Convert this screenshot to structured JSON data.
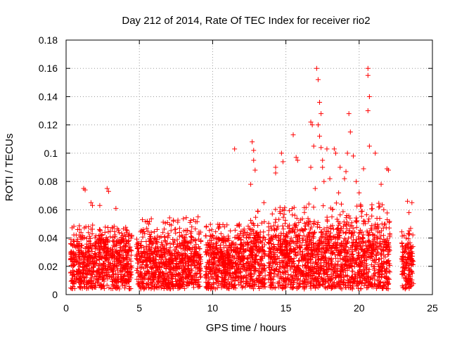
{
  "chart_data": {
    "type": "scatter",
    "title": "Day 212 of 2014, Rate Of TEC Index for receiver rio2",
    "xlabel": "GPS time / hours",
    "ylabel": "ROTI / TECUs",
    "xlim": [
      0,
      25
    ],
    "ylim": [
      0,
      0.18
    ],
    "x_ticks": [
      0,
      5,
      10,
      15,
      20,
      25
    ],
    "y_ticks": [
      0,
      0.02,
      0.04,
      0.06,
      0.08,
      0.1,
      0.12,
      0.14,
      0.16,
      0.18
    ],
    "x_tick_labels": [
      "0",
      "5",
      "10",
      "15",
      "20",
      "25"
    ],
    "y_tick_labels": [
      "0",
      "0.02",
      "0.04",
      "0.06",
      "0.08",
      "0.1",
      "0.12",
      "0.14",
      "0.16",
      "0.18"
    ],
    "grid": true,
    "marker": "+",
    "marker_color": "#ff0000",
    "segments": [
      {
        "start": 0.3,
        "end": 4.5,
        "base": 0.026,
        "spread": 0.018,
        "peak": 0.05
      },
      {
        "start": 4.8,
        "end": 9.2,
        "base": 0.026,
        "spread": 0.018,
        "peak": 0.055
      },
      {
        "start": 9.5,
        "end": 12.3,
        "base": 0.024,
        "spread": 0.017,
        "peak": 0.05
      },
      {
        "start": 12.3,
        "end": 13.6,
        "base": 0.03,
        "spread": 0.02,
        "peak": 0.06
      },
      {
        "start": 13.8,
        "end": 22.1,
        "base": 0.03,
        "spread": 0.022,
        "peak": 0.065
      },
      {
        "start": 22.9,
        "end": 23.7,
        "base": 0.026,
        "spread": 0.018,
        "peak": 0.048
      }
    ],
    "outliers": [
      {
        "x": 1.2,
        "y": 0.075
      },
      {
        "x": 1.3,
        "y": 0.074
      },
      {
        "x": 1.7,
        "y": 0.065
      },
      {
        "x": 1.8,
        "y": 0.063
      },
      {
        "x": 2.3,
        "y": 0.063
      },
      {
        "x": 2.8,
        "y": 0.075
      },
      {
        "x": 2.9,
        "y": 0.073
      },
      {
        "x": 3.4,
        "y": 0.061
      },
      {
        "x": 11.5,
        "y": 0.103
      },
      {
        "x": 12.7,
        "y": 0.108
      },
      {
        "x": 12.8,
        "y": 0.102
      },
      {
        "x": 12.8,
        "y": 0.095
      },
      {
        "x": 12.9,
        "y": 0.088
      },
      {
        "x": 12.6,
        "y": 0.078
      },
      {
        "x": 14.3,
        "y": 0.09
      },
      {
        "x": 14.3,
        "y": 0.086
      },
      {
        "x": 14.7,
        "y": 0.1
      },
      {
        "x": 14.8,
        "y": 0.094
      },
      {
        "x": 15.5,
        "y": 0.113
      },
      {
        "x": 15.7,
        "y": 0.097
      },
      {
        "x": 15.8,
        "y": 0.095
      },
      {
        "x": 16.7,
        "y": 0.122
      },
      {
        "x": 16.8,
        "y": 0.12
      },
      {
        "x": 16.9,
        "y": 0.105
      },
      {
        "x": 16.7,
        "y": 0.09
      },
      {
        "x": 17.1,
        "y": 0.16
      },
      {
        "x": 17.2,
        "y": 0.152
      },
      {
        "x": 17.3,
        "y": 0.136
      },
      {
        "x": 17.4,
        "y": 0.128
      },
      {
        "x": 17.2,
        "y": 0.12
      },
      {
        "x": 17.3,
        "y": 0.112
      },
      {
        "x": 17.4,
        "y": 0.104
      },
      {
        "x": 17.5,
        "y": 0.095
      },
      {
        "x": 17.5,
        "y": 0.09
      },
      {
        "x": 17.6,
        "y": 0.08
      },
      {
        "x": 17.8,
        "y": 0.103
      },
      {
        "x": 18.3,
        "y": 0.103
      },
      {
        "x": 18.4,
        "y": 0.1
      },
      {
        "x": 18.7,
        "y": 0.09
      },
      {
        "x": 19.0,
        "y": 0.082
      },
      {
        "x": 19.2,
        "y": 0.1
      },
      {
        "x": 19.3,
        "y": 0.128
      },
      {
        "x": 19.4,
        "y": 0.115
      },
      {
        "x": 19.6,
        "y": 0.098
      },
      {
        "x": 19.8,
        "y": 0.08
      },
      {
        "x": 20.0,
        "y": 0.072
      },
      {
        "x": 20.3,
        "y": 0.089
      },
      {
        "x": 20.6,
        "y": 0.16
      },
      {
        "x": 20.6,
        "y": 0.155
      },
      {
        "x": 20.7,
        "y": 0.14
      },
      {
        "x": 20.6,
        "y": 0.13
      },
      {
        "x": 20.7,
        "y": 0.105
      },
      {
        "x": 21.1,
        "y": 0.1
      },
      {
        "x": 21.9,
        "y": 0.089
      },
      {
        "x": 22.0,
        "y": 0.088
      },
      {
        "x": 23.3,
        "y": 0.066
      },
      {
        "x": 23.6,
        "y": 0.065
      },
      {
        "x": 23.4,
        "y": 0.058
      },
      {
        "x": 17.0,
        "y": 0.075
      },
      {
        "x": 18.0,
        "y": 0.082
      },
      {
        "x": 18.6,
        "y": 0.072
      },
      {
        "x": 19.1,
        "y": 0.087
      },
      {
        "x": 21.5,
        "y": 0.078
      },
      {
        "x": 13.5,
        "y": 0.065
      }
    ]
  }
}
